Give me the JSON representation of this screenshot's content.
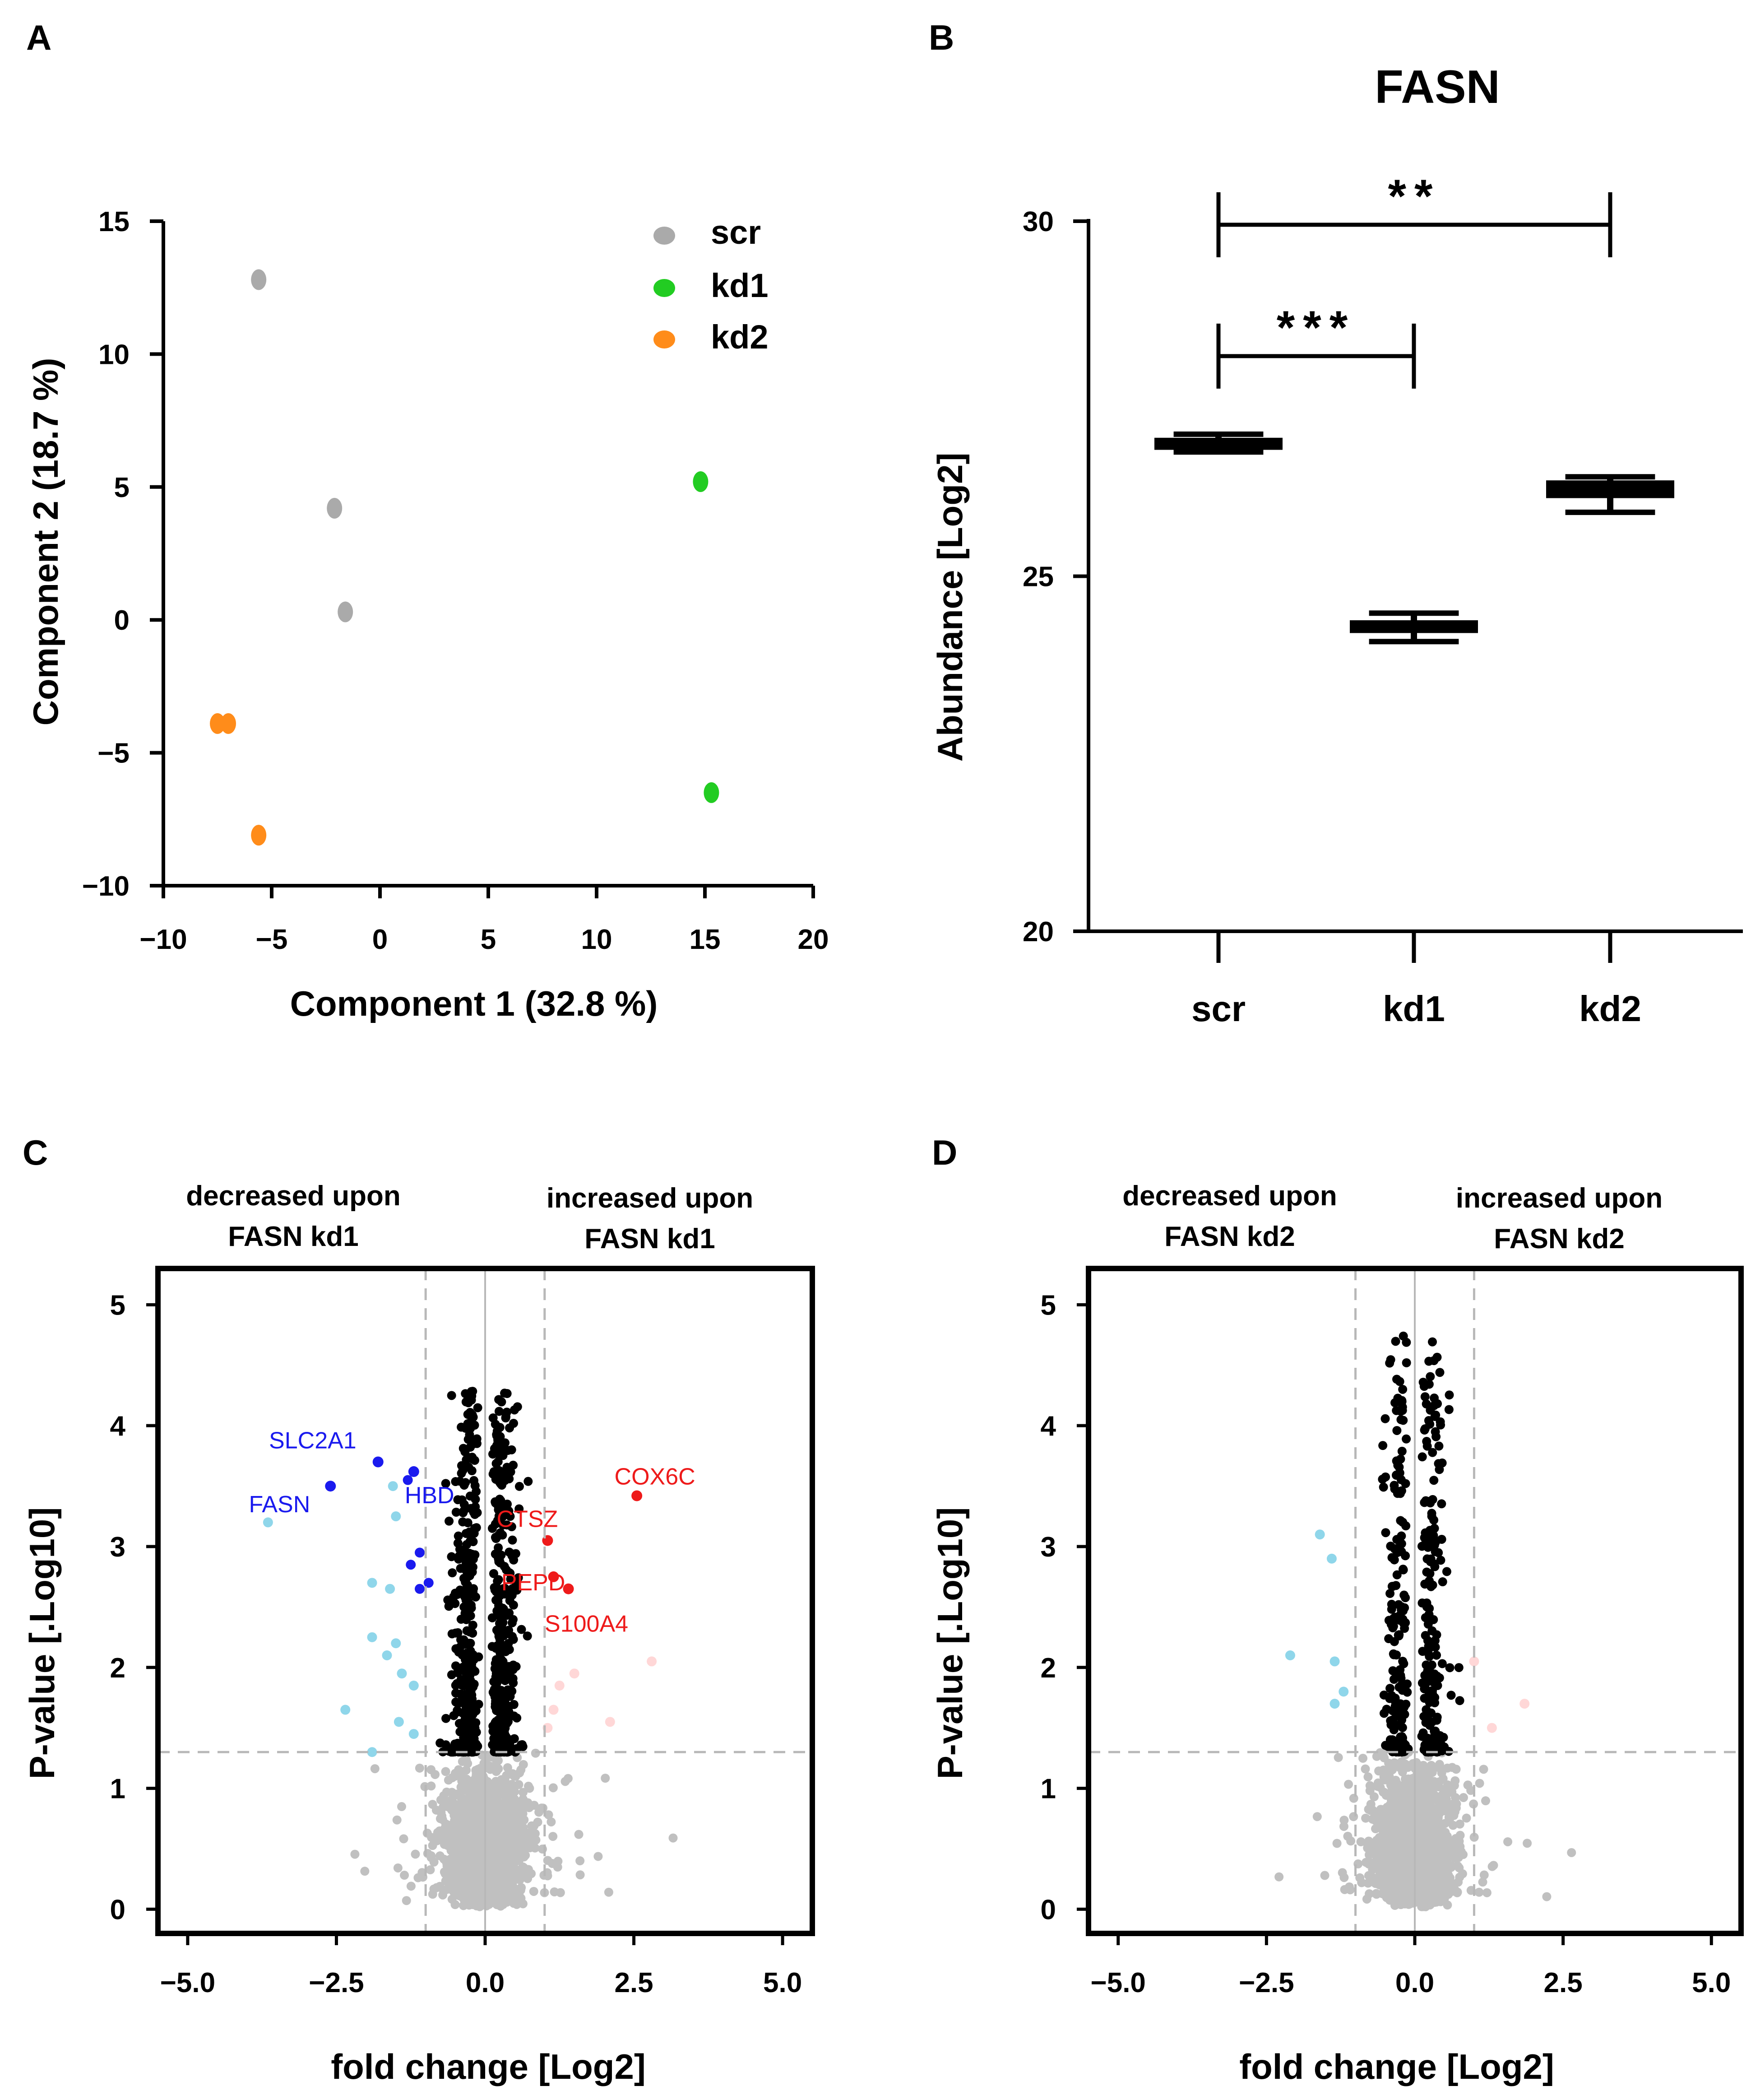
{
  "panels": [
    {
      "letter": "A"
    },
    {
      "letter": "B"
    },
    {
      "letter": "C"
    },
    {
      "letter": "D"
    }
  ],
  "chart_data": [
    {
      "id": "A",
      "type": "scatter",
      "title": "",
      "xlabel": "Component 1 (32.8 %)",
      "ylabel": "Component 2 (18.7 %)",
      "xlim": [
        -10,
        20
      ],
      "ylim": [
        -10,
        15
      ],
      "xticks": [
        "−10",
        "−5",
        "0",
        "5",
        "10",
        "15",
        "20"
      ],
      "yticks": [
        "15",
        "10",
        "5",
        "0",
        "−5",
        "−10"
      ],
      "legend_position": "top-right",
      "series": [
        {
          "name": "scr",
          "color": "#aaaaaa",
          "points": [
            [
              -5.6,
              12.8
            ],
            [
              -2.1,
              4.2
            ],
            [
              -1.6,
              0.3
            ]
          ]
        },
        {
          "name": "kd1",
          "color": "#22cc22",
          "points": [
            [
              14.8,
              5.2
            ],
            [
              15.3,
              -6.5
            ]
          ]
        },
        {
          "name": "kd2",
          "color": "#ff8c1a",
          "points": [
            [
              -7.5,
              -3.9
            ],
            [
              -7.0,
              -3.9
            ],
            [
              -5.6,
              -8.1
            ]
          ]
        }
      ]
    },
    {
      "id": "B",
      "type": "box",
      "title": "FASN",
      "xlabel": "",
      "ylabel": "Abundance [Log2]",
      "ylim": [
        20,
        30
      ],
      "yticks": [
        "30",
        "25",
        "20"
      ],
      "categories": [
        "scr",
        "kd1",
        "kd2"
      ],
      "boxes": [
        {
          "label": "scr",
          "min": 26.75,
          "q1": 26.78,
          "median": 26.85,
          "q3": 26.95,
          "max": 27.0
        },
        {
          "label": "kd1",
          "min": 24.08,
          "q1": 24.2,
          "median": 24.3,
          "q3": 24.38,
          "max": 24.48
        },
        {
          "label": "kd2",
          "min": 25.9,
          "q1": 26.1,
          "median": 26.25,
          "q3": 26.35,
          "max": 26.4
        }
      ],
      "significance": [
        {
          "from": "scr",
          "to": "kd2",
          "label": "**",
          "y": 29.95
        },
        {
          "from": "scr",
          "to": "kd1",
          "label": "***",
          "y": 28.1
        }
      ]
    },
    {
      "id": "C",
      "type": "scatter",
      "title": "",
      "xlabel": "fold change [Log2]",
      "ylabel": "P-value [.Log10]",
      "xlim": [
        -5.5,
        5.5
      ],
      "ylim": [
        -0.2,
        5.3
      ],
      "xticks": [
        "−5.0",
        "−2.5",
        "0.0",
        "2.5",
        "5.0"
      ],
      "yticks": [
        "5",
        "4",
        "3",
        "2",
        "1",
        "0"
      ],
      "fc_threshold": 1.0,
      "p_threshold": 1.3,
      "region_labels": {
        "left_line1": "decreased upon",
        "left_line2": "FASN kd1",
        "right_line1": "increased upon",
        "right_line2": "FASN kd1"
      },
      "gene_labels": [
        {
          "gene": "SLC2A1",
          "x": -1.8,
          "y": 3.7,
          "color": "#1a1aee"
        },
        {
          "gene": "FASN",
          "x": -2.6,
          "y": 3.5,
          "color": "#1a1aee"
        },
        {
          "gene": "HBD",
          "x": -1.2,
          "y": 3.62,
          "color": "#1a1aee"
        },
        {
          "gene": "COX6C",
          "x": 2.55,
          "y": 3.42,
          "color": "#ee1a1a"
        },
        {
          "gene": "CTSZ",
          "x": 1.05,
          "y": 3.05,
          "color": "#ee1a1a"
        },
        {
          "gene": "PEPD",
          "x": 1.15,
          "y": 2.75,
          "color": "#ee1a1a"
        },
        {
          "gene": "S100A4",
          "x": 1.4,
          "y": 2.65,
          "color": "#ee1a1a"
        }
      ],
      "categories": [
        "non-significant",
        "significant",
        "down-strong",
        "down-light",
        "up-strong",
        "up-light"
      ],
      "colors": [
        "#c0c0c0",
        "#000000",
        "#1a1aee",
        "#8fd6ea",
        "#ee1a1a",
        "#ffd7d7"
      ],
      "highlight_points": {
        "down-strong": [
          [
            -1.3,
            3.55
          ],
          [
            -1.1,
            2.95
          ],
          [
            -0.95,
            2.7
          ],
          [
            -1.25,
            2.85
          ],
          [
            -1.1,
            2.65
          ]
        ],
        "down-light": [
          [
            -3.65,
            3.2
          ],
          [
            -1.55,
            3.5
          ],
          [
            -1.5,
            3.25
          ],
          [
            -1.9,
            2.7
          ],
          [
            -1.6,
            2.65
          ],
          [
            -1.9,
            2.25
          ],
          [
            -1.5,
            2.2
          ],
          [
            -1.65,
            2.1
          ],
          [
            -1.4,
            1.95
          ],
          [
            -1.2,
            1.85
          ],
          [
            -2.35,
            1.65
          ],
          [
            -1.45,
            1.55
          ],
          [
            -1.2,
            1.45
          ],
          [
            -1.9,
            1.3
          ]
        ],
        "up-strong": [],
        "up-light": [
          [
            2.8,
            2.05
          ],
          [
            1.5,
            1.95
          ],
          [
            1.25,
            1.85
          ],
          [
            1.15,
            1.65
          ],
          [
            2.1,
            1.55
          ],
          [
            1.05,
            1.5
          ]
        ]
      },
      "cloud_params": {
        "significant_n": 700,
        "nonsig_n": 2600,
        "seed": 7,
        "max_y": 4.3
      }
    },
    {
      "id": "D",
      "type": "scatter",
      "title": "",
      "xlabel": "fold change [Log2]",
      "ylabel": "P-value [.Log10]",
      "xlim": [
        -5.5,
        5.5
      ],
      "ylim": [
        -0.2,
        5.3
      ],
      "xticks": [
        "−5.0",
        "−2.5",
        "0.0",
        "2.5",
        "5.0"
      ],
      "yticks": [
        "5",
        "4",
        "3",
        "2",
        "1",
        "0"
      ],
      "fc_threshold": 1.0,
      "p_threshold": 1.3,
      "region_labels": {
        "left_line1": "decreased upon",
        "left_line2": "FASN kd2",
        "right_line1": "increased upon",
        "right_line2": "FASN kd2"
      },
      "gene_labels": [],
      "categories": [
        "non-significant",
        "significant",
        "down-strong",
        "down-light",
        "up-strong",
        "up-light"
      ],
      "colors": [
        "#c0c0c0",
        "#000000",
        "#1a1aee",
        "#8fd6ea",
        "#ee1a1a",
        "#ffd7d7"
      ],
      "highlight_points": {
        "down-strong": [],
        "down-light": [
          [
            -1.6,
            3.1
          ],
          [
            -1.4,
            2.9
          ],
          [
            -2.1,
            2.1
          ],
          [
            -1.35,
            2.05
          ],
          [
            -1.2,
            1.8
          ],
          [
            -1.35,
            1.7
          ]
        ],
        "up-strong": [],
        "up-light": [
          [
            1.85,
            1.7
          ],
          [
            1.3,
            1.5
          ],
          [
            1.0,
            2.05
          ]
        ]
      },
      "cloud_params": {
        "significant_n": 380,
        "nonsig_n": 2600,
        "seed": 13,
        "max_y": 4.75
      }
    }
  ]
}
